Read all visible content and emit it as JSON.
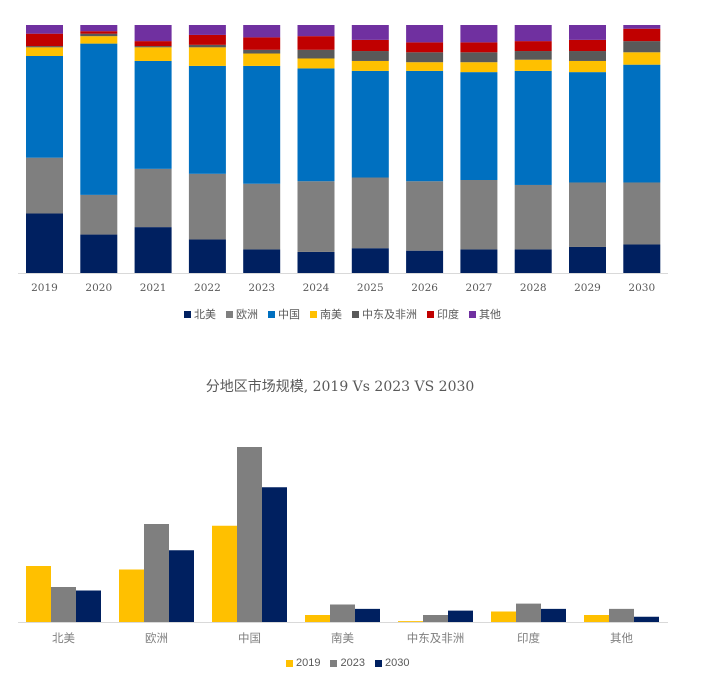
{
  "chart_data": [
    {
      "type": "bar",
      "stacked": "percent",
      "title": "",
      "categories": [
        "2019",
        "2020",
        "2021",
        "2022",
        "2023",
        "2024",
        "2025",
        "2026",
        "2027",
        "2028",
        "2029",
        "2030"
      ],
      "ylim": [
        0,
        100
      ],
      "grid": false,
      "legend_position": "bottom",
      "series": [
        {
          "name": "北美",
          "color": "#002060",
          "values": [
            24,
            15.5,
            18.5,
            13.5,
            9.5,
            8.5,
            10,
            9,
            9.5,
            9.5,
            10.5,
            11.5
          ]
        },
        {
          "name": "欧洲",
          "color": "#7f7f7f",
          "values": [
            22.5,
            16,
            23.5,
            26.5,
            26.5,
            28.5,
            28.5,
            28,
            28,
            26,
            26,
            25
          ]
        },
        {
          "name": "中国",
          "color": "#0070c0",
          "values": [
            41,
            61,
            43.5,
            43.5,
            47.5,
            45.5,
            43,
            44.5,
            43.5,
            46,
            44.5,
            47.5
          ]
        },
        {
          "name": "南美",
          "color": "#ffc000",
          "values": [
            3.5,
            3,
            5.5,
            7.5,
            5,
            4,
            4,
            3.5,
            4,
            4.5,
            4.5,
            5
          ]
        },
        {
          "name": "中东及非洲",
          "color": "#595959",
          "values": [
            0.5,
            1,
            0.5,
            1,
            1.5,
            3.5,
            4,
            4,
            4,
            3.5,
            4,
            4.5
          ]
        },
        {
          "name": "印度",
          "color": "#c00000",
          "values": [
            5,
            1,
            2,
            4,
            5,
            5.5,
            4.5,
            4,
            4,
            4,
            4.5,
            5
          ]
        },
        {
          "name": "其他",
          "color": "#7030a0",
          "values": [
            3.5,
            2.5,
            6.5,
            4,
            5,
            4.5,
            6,
            7,
            7,
            6.5,
            6,
            1.5
          ]
        }
      ]
    },
    {
      "type": "bar",
      "title": "分地区市场规模, 2019 Vs 2023 VS 2030",
      "categories": [
        "北美",
        "欧洲",
        "中国",
        "南美",
        "中东及非洲",
        "印度",
        "其他"
      ],
      "ylim": [
        0,
        100
      ],
      "grid": false,
      "legend_position": "bottom",
      "series": [
        {
          "name": "2019",
          "color": "#ffc000",
          "values": [
            32,
            30,
            55,
            4,
            0.5,
            6,
            4
          ]
        },
        {
          "name": "2023",
          "color": "#7f7f7f",
          "values": [
            20,
            56,
            100,
            10,
            4,
            10.5,
            7.5
          ]
        },
        {
          "name": "2030",
          "color": "#002060",
          "values": [
            18,
            41,
            77,
            7.5,
            6.5,
            7.5,
            3
          ]
        }
      ]
    }
  ]
}
